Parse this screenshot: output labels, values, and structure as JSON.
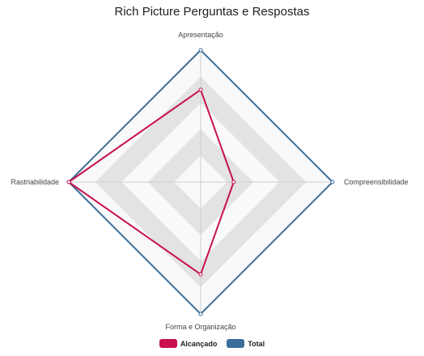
{
  "chart_data": {
    "type": "radar",
    "title": "Rich Picture Perguntas e Respostas",
    "axes": [
      "Apresentação",
      "Compreensibilidade",
      "Forma e Organização",
      "Rastriabilidade"
    ],
    "range": [
      0,
      5
    ],
    "grid_levels": 5,
    "grid_bands": [
      "#f9f9f9",
      "#e3e3e3"
    ],
    "series": [
      {
        "name": "Alcançado",
        "values": [
          3.5,
          1.25,
          3.5,
          5
        ],
        "color": "#c8104f"
      },
      {
        "name": "Total",
        "values": [
          5,
          5,
          5,
          5
        ],
        "color": "#3b6e9a"
      }
    ],
    "legend": "bottom",
    "grid": true
  }
}
